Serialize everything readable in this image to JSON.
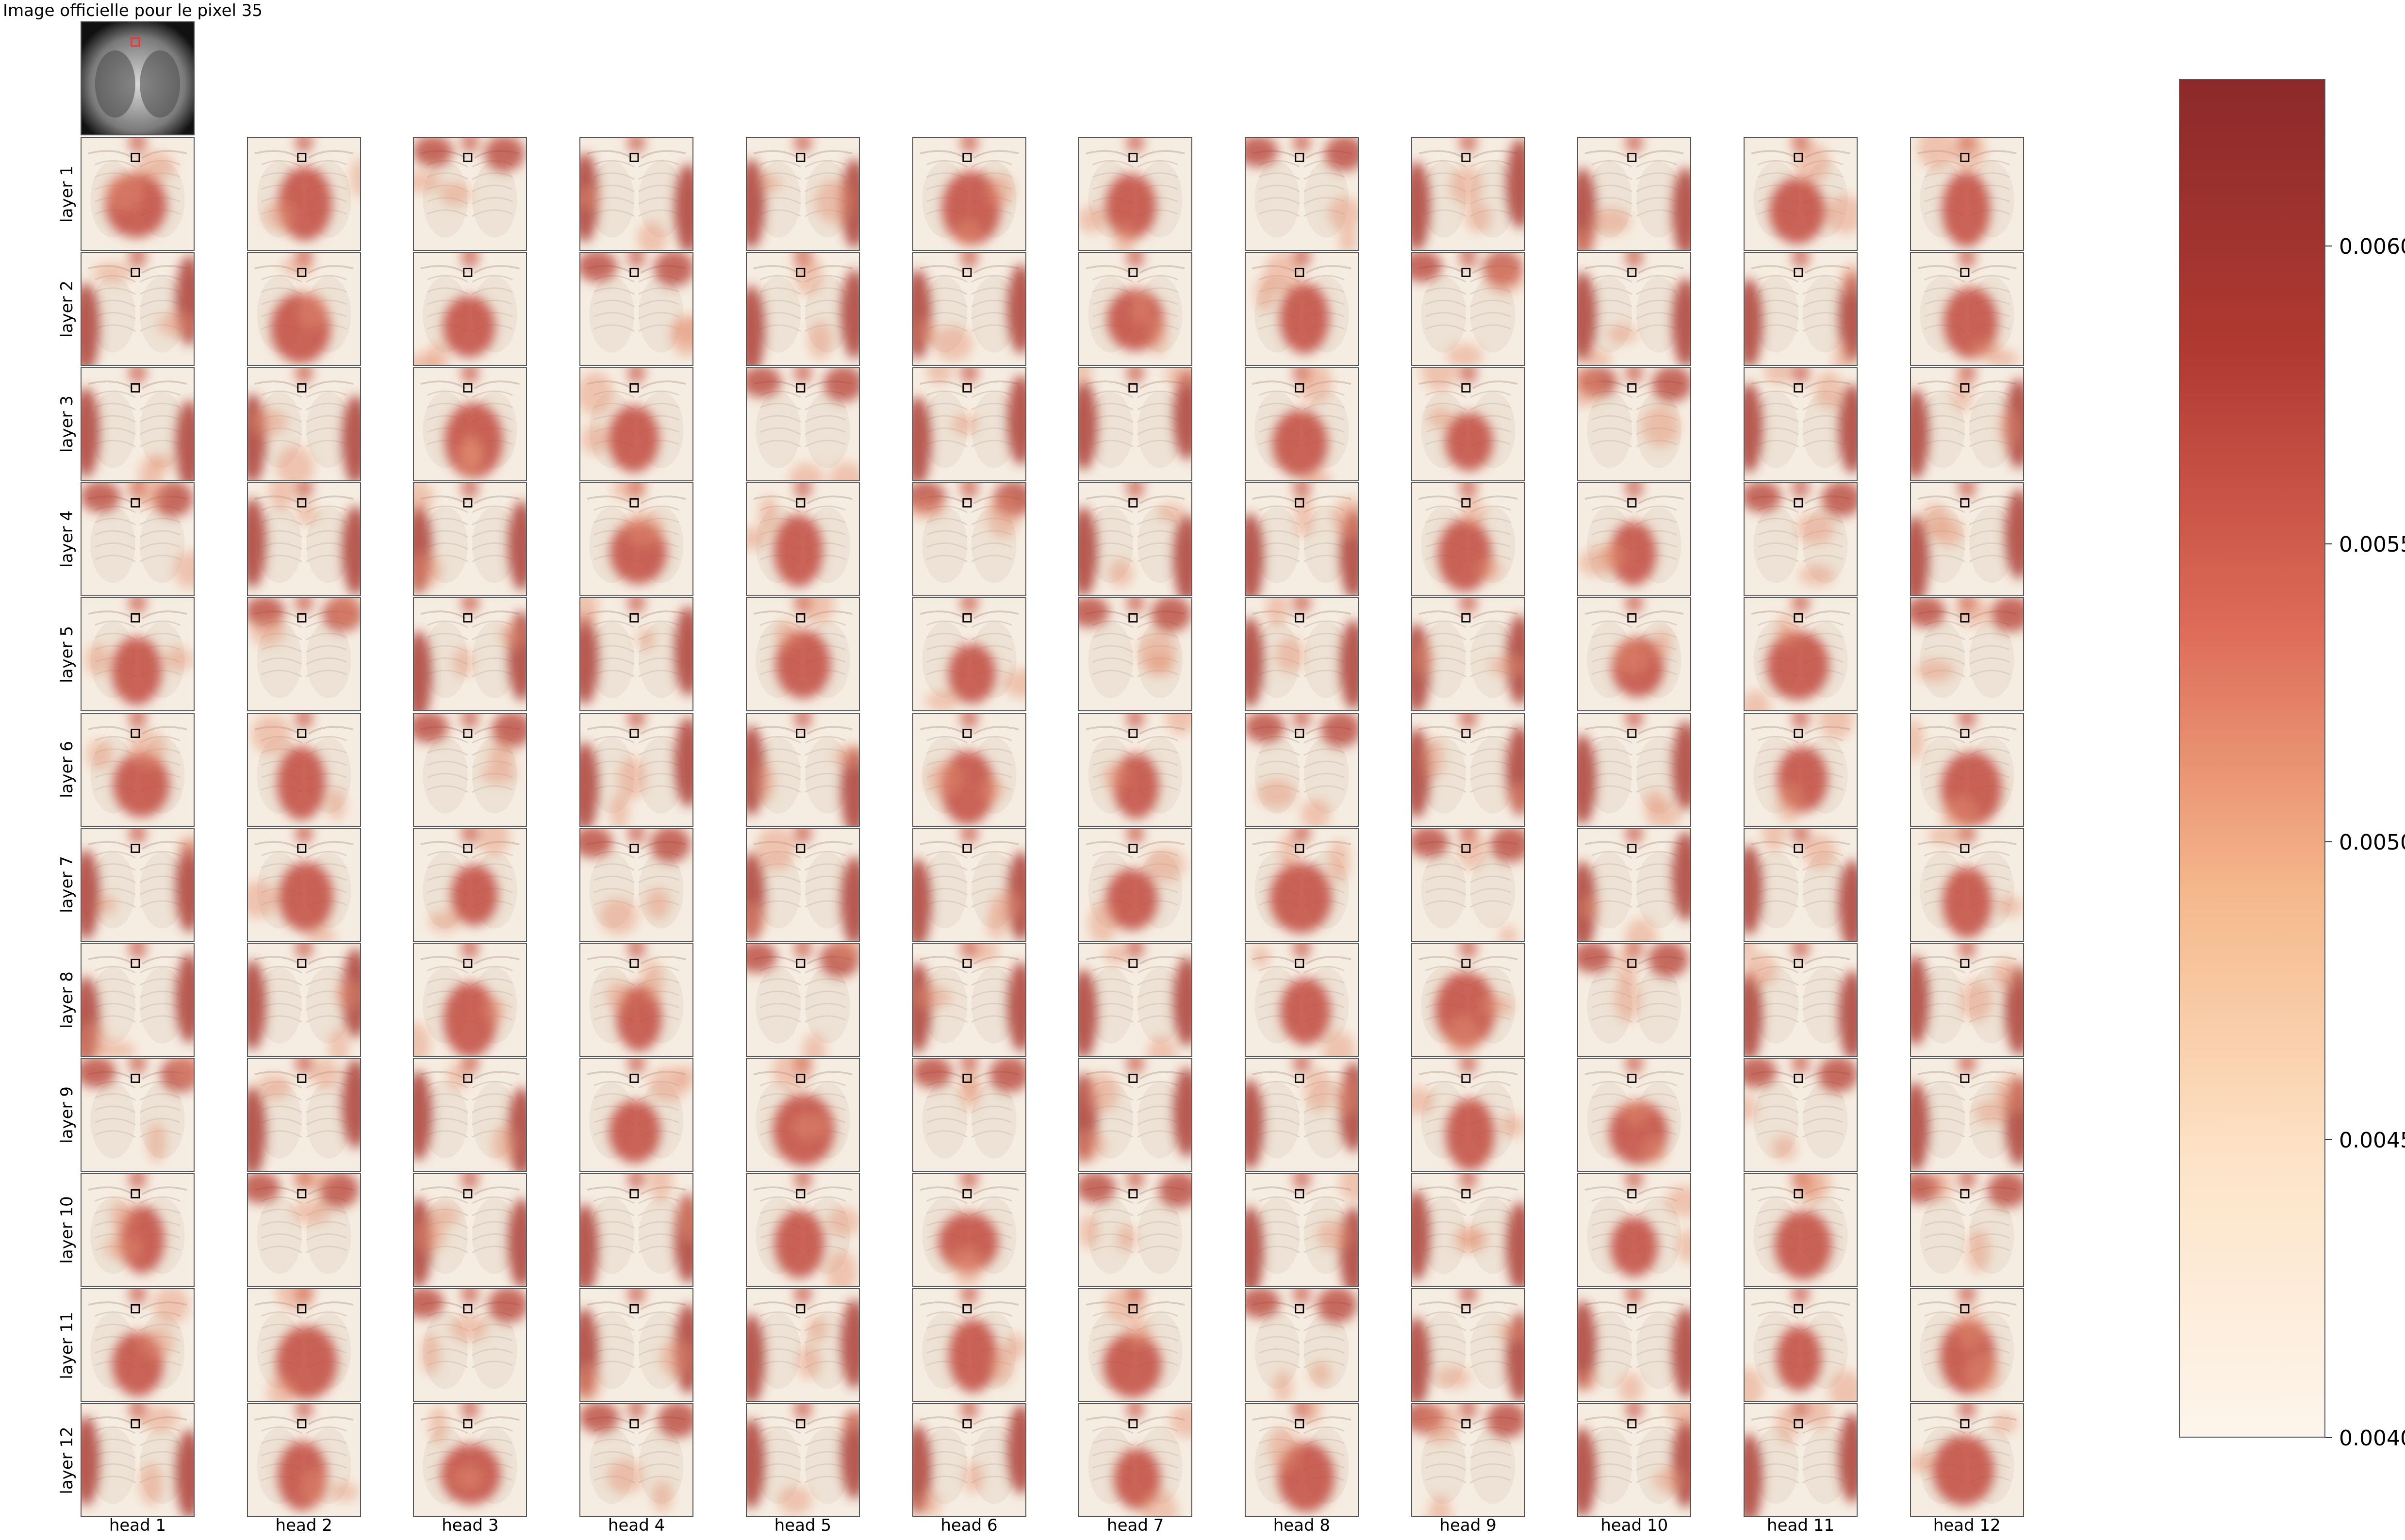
{
  "title": "Image officielle pour le pixel 35",
  "row_labels": [
    "layer 1",
    "layer 2",
    "layer 3",
    "layer 4",
    "layer 5",
    "layer 6",
    "layer 7",
    "layer 8",
    "layer 9",
    "layer 10",
    "layer 11",
    "layer 12"
  ],
  "col_labels": [
    "head 1",
    "head 2",
    "head 3",
    "head 4",
    "head 5",
    "head 6",
    "head 7",
    "head 8",
    "head 9",
    "head 10",
    "head 11",
    "head 12"
  ],
  "colorbar": {
    "min": 0.004,
    "max": 0.00628,
    "ticks": [
      "0.0040",
      "0.0045",
      "0.0050",
      "0.0055",
      "0.0060"
    ],
    "tick_values": [
      0.004,
      0.0045,
      0.005,
      0.0055,
      0.006
    ],
    "colormap": "OrRd",
    "colors": [
      "#fdf5ec",
      "#fde4c8",
      "#f5b88c",
      "#dd6a58",
      "#b03a32",
      "#8c2a2a"
    ]
  },
  "accent_colors": {
    "marker_box": "#000000",
    "original_marker": "#ff3030"
  }
}
